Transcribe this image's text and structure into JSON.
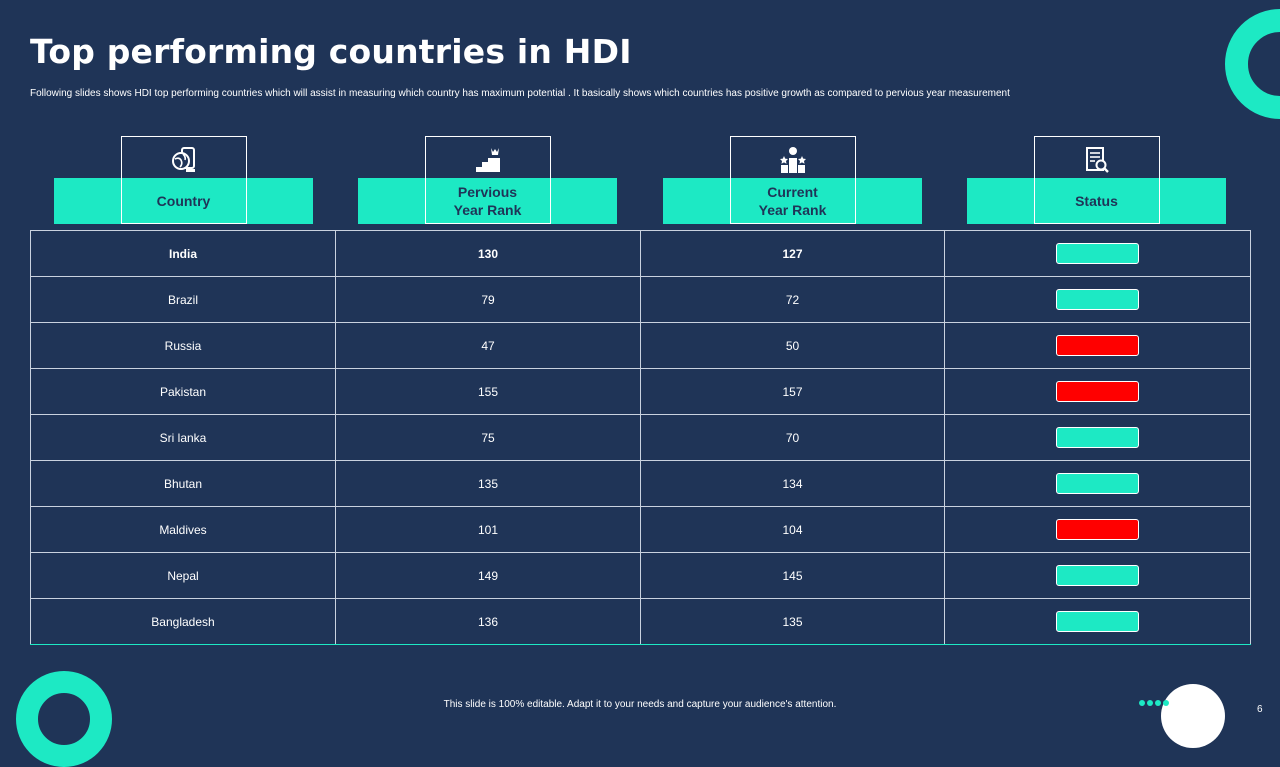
{
  "title": "Top performing countries in HDI",
  "subtitle": "Following slides shows HDI top performing countries which will assist in  measuring which country has maximum potential . It  basically shows which countries has positive growth as compared to pervious year measurement",
  "columns": [
    {
      "label": "Country",
      "icon": "globe-devices-icon"
    },
    {
      "label": "Pervious\nYear Rank",
      "icon": "stairs-crown-icon"
    },
    {
      "label": "Current\nYear Rank",
      "icon": "podium-stars-icon"
    },
    {
      "label": "Status",
      "icon": "report-magnifier-icon"
    }
  ],
  "rows": [
    {
      "country": "India",
      "previous": "130",
      "current": "127",
      "status": "up"
    },
    {
      "country": "Brazil",
      "previous": "79",
      "current": "72",
      "status": "up"
    },
    {
      "country": "Russia",
      "previous": "47",
      "current": "50",
      "status": "down"
    },
    {
      "country": "Pakistan",
      "previous": "155",
      "current": "157",
      "status": "down"
    },
    {
      "country": "Sri lanka",
      "previous": "75",
      "current": "70",
      "status": "up"
    },
    {
      "country": "Bhutan",
      "previous": "135",
      "current": "134",
      "status": "up"
    },
    {
      "country": "Maldives",
      "previous": "101",
      "current": "104",
      "status": "down"
    },
    {
      "country": "Nepal",
      "previous": "149",
      "current": "145",
      "status": "up"
    },
    {
      "country": "Bangladesh",
      "previous": "136",
      "current": "135",
      "status": "up"
    }
  ],
  "colors": {
    "background": "#1f3457",
    "accent": "#1de9c4",
    "status_up": "#1de9c4",
    "status_down": "#ff0000"
  },
  "footer": "This slide is 100% editable.  Adapt it to your needs and capture your audience's attention.",
  "page_number": "6"
}
